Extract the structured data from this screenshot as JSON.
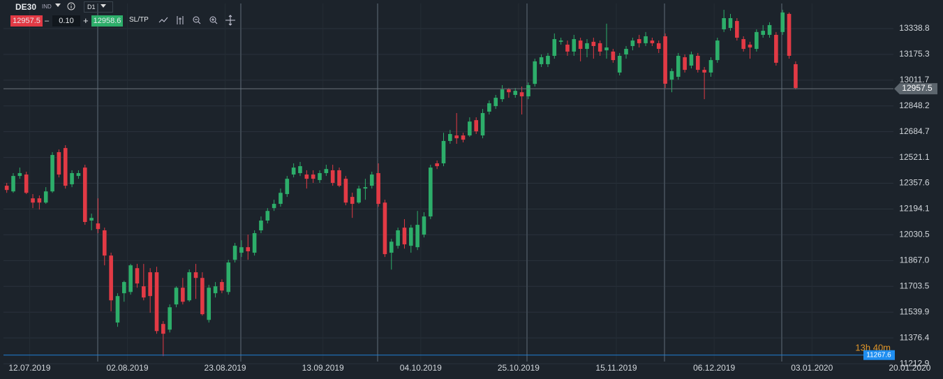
{
  "toolbar": {
    "symbol": "DE30",
    "symbol_type": "IND",
    "timeframe": "D1",
    "sell_price": "12957.5",
    "minus": "–",
    "volume": "0.10",
    "plus": "+",
    "buy_price": "12958.6",
    "sl_tp": "SL/TP"
  },
  "chart_data": {
    "type": "candlestick",
    "up_color": "#2dae6a",
    "down_color": "#e23a45",
    "grid": true,
    "open": [
      12342,
      12306,
      12404,
      12413,
      12262,
      12262,
      12235,
      12306,
      12555,
      12581,
      12351,
      12404,
      12457,
      12121,
      12103,
      12059,
      11899,
      11474,
      11660,
      11668,
      11819,
      11704,
      11793,
      11793,
      11465,
      11429,
      11589,
      11695,
      11615,
      11793,
      11757,
      11491,
      11660,
      11731,
      11668,
      11872,
      11917,
      11952,
      11917,
      12059,
      12121,
      12200,
      12227,
      12289,
      12413,
      12422,
      12413,
      12413,
      12378,
      12422,
      12440,
      12440,
      12386,
      12271,
      12235,
      12324,
      12342,
      12422,
      12235,
      11917,
      11961,
      12076,
      11961,
      11952,
      12032,
      12147,
      12484,
      12484,
      12626,
      12661,
      12661,
      12661,
      12758,
      12661,
      12812,
      12847,
      12891,
      12953,
      12918,
      12935,
      12909,
      12988,
      13113,
      13113,
      13166,
      13255,
      13237,
      13193,
      13263,
      13210,
      13255,
      13246,
      13201,
      13193,
      13060,
      13175,
      13228,
      13272,
      13246,
      13263,
      13246,
      13290,
      13015,
      13033,
      13157,
      13104,
      13166,
      13077,
      13060,
      13139,
      13334,
      13343,
      13387,
      13272,
      13237,
      13210,
      13299,
      13299,
      13299,
      13317,
      13432,
      13113
    ],
    "high": [
      12360,
      12422,
      12457,
      12431,
      12289,
      12280,
      12333,
      12555,
      12572,
      12599,
      12440,
      12440,
      12475,
      12165,
      12262,
      12076,
      11917,
      11660,
      11739,
      11846,
      11846,
      11846,
      11819,
      11828,
      11483,
      11589,
      11704,
      11757,
      11811,
      11846,
      11793,
      11713,
      11731,
      11748,
      11872,
      11979,
      11996,
      12032,
      12059,
      12147,
      12200,
      12253,
      12324,
      12404,
      12484,
      12493,
      12440,
      12440,
      12440,
      12475,
      12475,
      12457,
      12404,
      12298,
      12342,
      12386,
      12431,
      12484,
      12253,
      12005,
      12076,
      12130,
      12094,
      12182,
      12174,
      12475,
      12502,
      12678,
      12696,
      12803,
      12678,
      12776,
      12776,
      12829,
      12883,
      12918,
      12980,
      12962,
      12962,
      12971,
      12997,
      13148,
      13175,
      13184,
      13308,
      13281,
      13263,
      13299,
      13281,
      13272,
      13281,
      13263,
      13370,
      13210,
      13184,
      13228,
      13281,
      13299,
      13317,
      13281,
      13263,
      13308,
      13086,
      13184,
      13175,
      13193,
      13184,
      13095,
      13157,
      13281,
      13458,
      13432,
      13405,
      13290,
      13255,
      13334,
      13361,
      13379,
      13317,
      13458,
      13441,
      13131
    ],
    "low": [
      12297,
      12297,
      12386,
      12289,
      12200,
      12191,
      12227,
      12297,
      12395,
      12324,
      12333,
      12386,
      12094,
      12059,
      12041,
      11837,
      11545,
      11447,
      11606,
      11651,
      11695,
      11615,
      11536,
      11403,
      11261,
      11411,
      11571,
      11589,
      11606,
      11624,
      11518,
      11474,
      11633,
      11660,
      11651,
      11855,
      11890,
      11872,
      11899,
      12041,
      12103,
      12182,
      12209,
      12271,
      12395,
      12404,
      12324,
      12360,
      12360,
      12404,
      12342,
      12333,
      12218,
      12138,
      12227,
      12253,
      12324,
      12209,
      11890,
      11810,
      11943,
      11943,
      11917,
      11934,
      12014,
      12130,
      12448,
      12466,
      12608,
      12608,
      12617,
      12652,
      12670,
      12643,
      12794,
      12829,
      12874,
      12900,
      12900,
      12794,
      12891,
      12971,
      13095,
      13095,
      13148,
      13237,
      13166,
      13166,
      13131,
      13157,
      13148,
      13166,
      13148,
      13122,
      13042,
      13148,
      13201,
      13219,
      13228,
      13228,
      13184,
      12962,
      12935,
      13015,
      13060,
      13086,
      13060,
      12891,
      13033,
      13122,
      13317,
      13325,
      13263,
      13193,
      13148,
      13193,
      13281,
      13281,
      13104,
      13299,
      13148,
      12953
    ],
    "close": [
      12315,
      12404,
      12422,
      12297,
      12235,
      12235,
      12306,
      12537,
      12413,
      12342,
      12422,
      12422,
      12112,
      12138,
      12067,
      11899,
      11615,
      11642,
      11731,
      11837,
      11722,
      11633,
      11642,
      11420,
      11403,
      11571,
      11695,
      11606,
      11793,
      11757,
      11527,
      11695,
      11704,
      11677,
      11855,
      11961,
      11952,
      11926,
      12041,
      12121,
      12182,
      12227,
      12297,
      12386,
      12457,
      12466,
      12386,
      12386,
      12422,
      12448,
      12360,
      12342,
      12235,
      12227,
      12324,
      12333,
      12413,
      12227,
      11908,
      11987,
      12059,
      11970,
      12076,
      12094,
      12147,
      12457,
      12466,
      12626,
      12670,
      12643,
      12634,
      12749,
      12687,
      12803,
      12865,
      12900,
      12953,
      12935,
      12944,
      12909,
      12980,
      13131,
      13157,
      13166,
      13272,
      13263,
      13193,
      13272,
      13210,
      13246,
      13228,
      13193,
      13219,
      13139,
      13166,
      13210,
      13263,
      13246,
      13290,
      13246,
      13210,
      12989,
      13069,
      13166,
      13077,
      13175,
      13077,
      13060,
      13139,
      13263,
      13405,
      13405,
      13281,
      13210,
      13219,
      13317,
      13325,
      13361,
      13122,
      13441,
      13166,
      12962
    ],
    "xlim": [
      -0.5,
      136
    ],
    "xticks": [
      {
        "value": 3.5,
        "label": "12.07.2019"
      },
      {
        "value": 18.5,
        "label": "02.08.2019"
      },
      {
        "value": 33.5,
        "label": "23.08.2019"
      },
      {
        "value": 48.5,
        "label": "13.09.2019"
      },
      {
        "value": 63.5,
        "label": "04.10.2019"
      },
      {
        "value": 78.5,
        "label": "25.10.2019"
      },
      {
        "value": 93.5,
        "label": "15.11.2019"
      },
      {
        "value": 108.5,
        "label": "06.12.2019"
      },
      {
        "value": 123.5,
        "label": "03.01.2020"
      },
      {
        "value": 138.5,
        "label": "20.01.2020"
      }
    ],
    "ylim": [
      11200,
      13498
    ],
    "yticks": [
      13338.8,
      13175.3,
      13011.7,
      12848.2,
      12684.7,
      12521.1,
      12357.6,
      12194.1,
      12030.5,
      {
        "value": 11867,
        "label": "11867.0"
      },
      11703.5,
      11539.9,
      11376.4,
      11212.9
    ],
    "current_price": 12957.5,
    "reference_level": 11267.6,
    "countdown": "13h 40m"
  }
}
